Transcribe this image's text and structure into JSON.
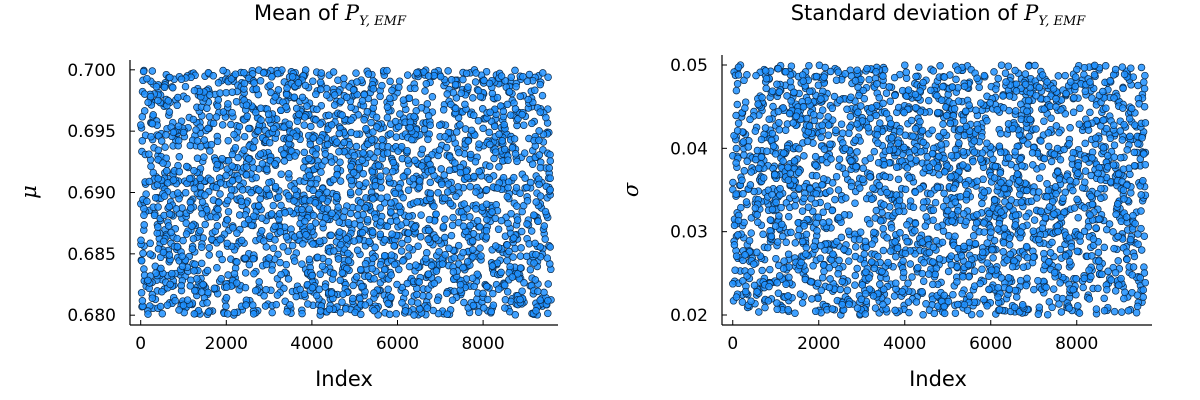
{
  "colors": {
    "marker_fill": "#1e90ff",
    "marker_edge": "#0b2a4a",
    "axis": "#000000"
  },
  "chart_data": [
    {
      "type": "scatter",
      "title_prefix": "Mean of ",
      "title_math": "P",
      "title_subscript": "Y, EMF",
      "xlabel": "Index",
      "ylabel": "μ",
      "xlim": [
        -250,
        9750
      ],
      "ylim": [
        0.6792,
        0.7008
      ],
      "xticks": [
        0,
        2000,
        4000,
        6000,
        8000
      ],
      "xtick_labels": [
        "0",
        "2000",
        "4000",
        "6000",
        "8000"
      ],
      "yticks": [
        0.68,
        0.685,
        0.69,
        0.695,
        0.7
      ],
      "ytick_labels": [
        "0.680",
        "0.685",
        "0.690",
        "0.695",
        "0.700"
      ],
      "grid": false,
      "series": [
        {
          "distribution": "uniform",
          "n_points": 9600,
          "x_range": [
            0,
            9599
          ],
          "y_range": [
            0.68,
            0.7
          ]
        }
      ]
    },
    {
      "type": "scatter",
      "title_prefix": "Standard deviation of ",
      "title_math": "P",
      "title_subscript": "Y, EMF",
      "xlabel": "Index",
      "ylabel": "σ",
      "xlim": [
        -250,
        9750
      ],
      "ylim": [
        0.0188,
        0.0512
      ],
      "xticks": [
        0,
        2000,
        4000,
        6000,
        8000
      ],
      "xtick_labels": [
        "0",
        "2000",
        "4000",
        "6000",
        "8000"
      ],
      "yticks": [
        0.02,
        0.03,
        0.04,
        0.05
      ],
      "ytick_labels": [
        "0.02",
        "0.03",
        "0.04",
        "0.05"
      ],
      "grid": false,
      "series": [
        {
          "distribution": "uniform",
          "n_points": 9600,
          "x_range": [
            0,
            9599
          ],
          "y_range": [
            0.02,
            0.05
          ]
        }
      ]
    }
  ]
}
